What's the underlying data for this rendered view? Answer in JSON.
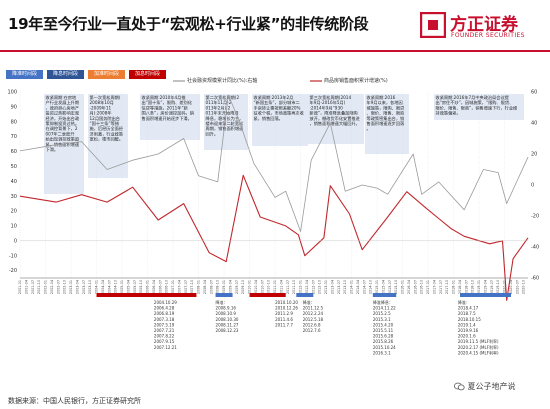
{
  "page": {
    "title": "19年至今行业一直处于“宏观松+行业紧”的非传统阶段",
    "logo_text": "方正证券",
    "logo_subtext": "FOUNDER SECURITIES",
    "source": "数据来源：中国人民银行，方正证券研究所",
    "watermark": "夏公子地产说"
  },
  "legend_boxes": [
    {
      "label": "降准时间段",
      "color": "#4472c4"
    },
    {
      "label": "降息时间段",
      "color": "#2f5597"
    },
    {
      "label": "加准时间段",
      "color": "#ed7d31"
    },
    {
      "label": "加息时间段",
      "color": "#c00000"
    }
  ],
  "colors": {
    "red_line": "#c0282d",
    "gray_line": "#9a9a9a",
    "phase_box": "#dde5f3",
    "blue_bar": "#4472c4",
    "red_bar": "#c00000"
  },
  "chart_data": {
    "type": "line",
    "x_range": [
      "2001-01",
      "2020-12"
    ],
    "x_tick_step_months": 3,
    "yleft": {
      "min": -25,
      "max": 100,
      "ticks": [
        100,
        90,
        80,
        70,
        60,
        50,
        40,
        30,
        20,
        10,
        0,
        -10,
        -20
      ]
    },
    "yright": {
      "min": -60,
      "max": 60,
      "ticks": [
        60,
        40,
        20,
        0,
        -20,
        -40,
        -60
      ]
    },
    "series": [
      {
        "name": "社会融资规模累计同比(%):右轴",
        "axis": "right",
        "color": "#9a9a9a",
        "points": [
          [
            "2001-01",
            22
          ],
          [
            "2002-06",
            26
          ],
          [
            "2003-06",
            28
          ],
          [
            "2004-06",
            10
          ],
          [
            "2005-06",
            16
          ],
          [
            "2006-06",
            20
          ],
          [
            "2007-06",
            30
          ],
          [
            "2008-01",
            6
          ],
          [
            "2008-10",
            2
          ],
          [
            "2009-03",
            58
          ],
          [
            "2009-08",
            42
          ],
          [
            "2010-03",
            14
          ],
          [
            "2011-01",
            -8
          ],
          [
            "2011-06",
            -4
          ],
          [
            "2012-01",
            -30
          ],
          [
            "2012-06",
            16
          ],
          [
            "2013-03",
            40
          ],
          [
            "2013-10",
            -4
          ],
          [
            "2014-06",
            0
          ],
          [
            "2015-01",
            -2
          ],
          [
            "2015-06",
            -6
          ],
          [
            "2016-06",
            20
          ],
          [
            "2016-10",
            -6
          ],
          [
            "2017-06",
            2
          ],
          [
            "2018-06",
            -16
          ],
          [
            "2019-03",
            10
          ],
          [
            "2019-10",
            8
          ],
          [
            "2020-02",
            -12
          ],
          [
            "2020-06",
            0
          ],
          [
            "2020-12",
            18
          ]
        ]
      },
      {
        "name": "商品房销售面积累计增速(%)",
        "axis": "left",
        "color": "#c0282d",
        "points": [
          [
            "2001-01",
            30
          ],
          [
            "2002-06",
            26
          ],
          [
            "2003-06",
            31
          ],
          [
            "2004-06",
            26
          ],
          [
            "2005-06",
            36
          ],
          [
            "2006-06",
            14
          ],
          [
            "2007-06",
            25
          ],
          [
            "2008-06",
            -8
          ],
          [
            "2009-02",
            -14
          ],
          [
            "2009-10",
            44
          ],
          [
            "2010-06",
            16
          ],
          [
            "2011-06",
            10
          ],
          [
            "2011-12",
            4
          ],
          [
            "2012-03",
            -10
          ],
          [
            "2012-12",
            2
          ],
          [
            "2013-03",
            37
          ],
          [
            "2013-12",
            18
          ],
          [
            "2014-06",
            -6
          ],
          [
            "2015-06",
            16
          ],
          [
            "2016-03",
            33
          ],
          [
            "2016-12",
            22
          ],
          [
            "2017-06",
            15
          ],
          [
            "2017-12",
            8
          ],
          [
            "2018-06",
            3
          ],
          [
            "2019-06",
            -2
          ],
          [
            "2019-12",
            0
          ],
          [
            "2020-02",
            -40
          ],
          [
            "2020-05",
            -12
          ],
          [
            "2020-12",
            2
          ]
        ]
      }
    ],
    "phases": [
      {
        "title": "收紧周期:",
        "text": "在房地产行业发展上升期，政府担心房地产投资过热影响宏观经济，开始出台政策抑制投资过热。在调控背景下，2007年二季度开始出现调控政策趋紧。销售面积增速下滑。"
      },
      {
        "title": "第一次宽松周期(2008年10月-2009年11月):",
        "text": "2008年12月国务院出台“国十三条”等措施，后经历全面经济刺激，行业政策宽松，楼市回暖。"
      },
      {
        "title": "收紧周期:",
        "text": "2010年4月推出“国十条”，限购、差别化信贷等措施，2011年“新国八条”，房价调控加码，销售面积增速开始逐步下滑。"
      },
      {
        "title": "第二次宽松周期(2011年11月-2013年2月):",
        "text": "2011年末开始降准降息，稳增长为主，楼市迎来第二轮宽松周期，销售面积增速回升。"
      },
      {
        "title": "收紧周期:",
        "text": "2013年2月“新国五条”，部分城市二手房转让需按照差额20%征收个税，市场政策再次收紧，销售回落。"
      },
      {
        "title": "第三次宽松周期(2014年9月-2016年5月):",
        "text": "2014年9月“930新政”，降准降息叠加限购放开，棚改货币化安置推进，销售面积增速大幅回升。"
      },
      {
        "title": "收紧周期:",
        "text": "2016年9月以来，各地因城施策，限购、限贷、限价、限售、限商等政策密集出台，销售面积增速逐步回落。"
      },
      {
        "title": "收紧周期:",
        "text": "2016年7月中央政治局会议提出“房住不炒”，因城施策，“限购、限贷、限价、限售、限商”，销售增速下行，行业维持政策偏紧。"
      }
    ],
    "policy_bars": [
      {
        "type": "red_bar",
        "start": "2004-01",
        "end": "2007-12"
      },
      {
        "type": "blue_bar",
        "start": "2008-09",
        "end": "2009-05"
      },
      {
        "type": "red_bar",
        "start": "2010-01",
        "end": "2011-06"
      },
      {
        "type": "blue_bar",
        "start": "2011-11",
        "end": "2012-07"
      },
      {
        "type": "blue_bar",
        "start": "2014-11",
        "end": "2015-10"
      },
      {
        "type": "blue_bar",
        "start": "2018-04",
        "end": "2020-04"
      }
    ],
    "date_lists": [
      {
        "start": "2006-04",
        "dates": [
          "2004.10.29",
          "2006.4.28",
          "2006.8.19",
          "2007.3.18",
          "2007.5.19",
          "2007.7.21",
          "2007.8.22",
          "2007.9.15",
          "2007.12.21"
        ]
      },
      {
        "start": "2008-09",
        "dates": [
          "降准：",
          "2008.9.16",
          "2008.10.9",
          "2008.10.30",
          "2008.11.27",
          "2008.12.23"
        ]
      },
      {
        "start": "2011-01",
        "dates": [
          "2010.10.20",
          "2010.12.26",
          "2011.2.9",
          "2011.4.6",
          "2011.7.7"
        ]
      },
      {
        "start": "2012-02",
        "dates": [
          "降准：",
          "2011.12.5",
          "2012.2.24",
          "2012.5.18",
          "2012.6.8",
          "2012.7.6"
        ]
      },
      {
        "start": "2014-11",
        "dates": [
          "降准降息：",
          "2014.11.22",
          "2015.2.5",
          "2015.3.1",
          "2015.4.20",
          "2015.5.11",
          "2015.6.28",
          "2015.8.26",
          "2015.10.24",
          "2016.3.1"
        ]
      },
      {
        "start": "2018-03",
        "dates": [
          "降准：",
          "2018.4.17",
          "2018.7.5",
          "2018.10.15",
          "2019.1.4",
          "2019.9.16",
          "2020.1.6",
          "2019.11.5 (MLF利率)",
          "2020.2.17 (MLF利率)",
          "2020.4.15 (MLF利率)"
        ]
      }
    ]
  }
}
